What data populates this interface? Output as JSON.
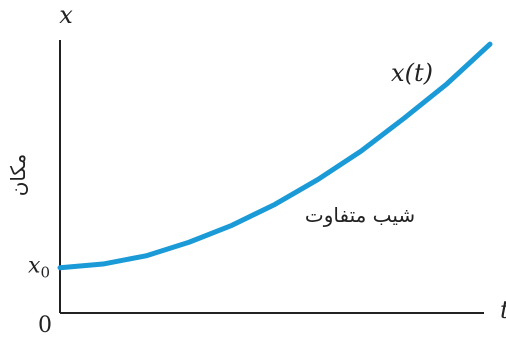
{
  "chart_data": {
    "type": "line",
    "title": "",
    "xlabel": "t",
    "ylabel": "x",
    "y_side_label": "مکان",
    "origin_label": "0",
    "y_tick_label": "x",
    "y_tick_subscript": "0",
    "curve_label": "x(t)",
    "annotation": "شیب متفاوت",
    "grid": false,
    "xlim": [
      0,
      10
    ],
    "ylim": [
      0,
      10
    ],
    "series": [
      {
        "x": [
          0,
          1,
          2,
          3,
          4,
          5,
          6,
          7,
          8,
          9,
          10
        ],
        "values": [
          1.6,
          1.73,
          2.02,
          2.5,
          3.1,
          3.84,
          4.72,
          5.72,
          6.88,
          8.1,
          9.5
        ]
      }
    ],
    "colors": {
      "curve": "#1a9ad6",
      "axis": "#222222",
      "text": "#222222"
    }
  }
}
